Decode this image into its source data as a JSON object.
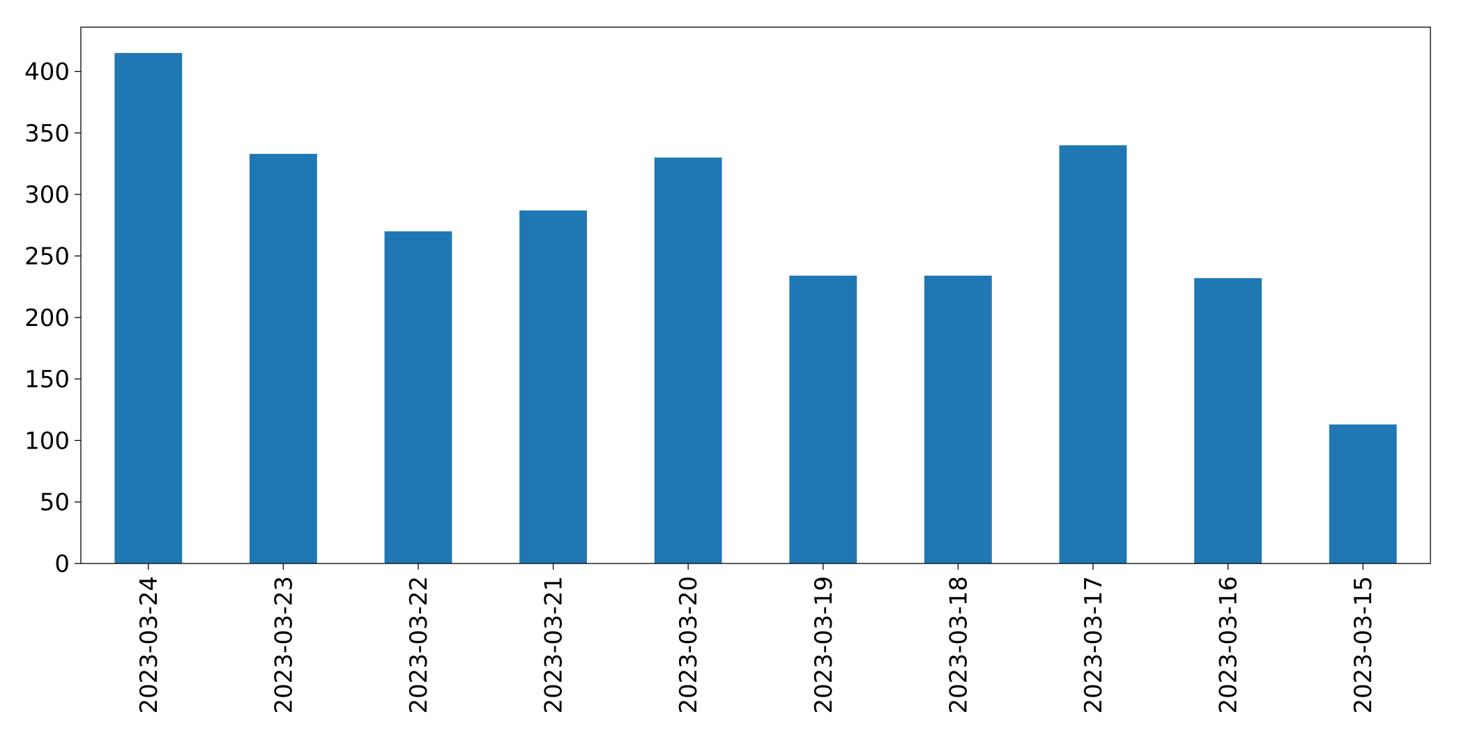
{
  "chart_data": {
    "type": "bar",
    "categories": [
      "2023-03-24",
      "2023-03-23",
      "2023-03-22",
      "2023-03-21",
      "2023-03-20",
      "2023-03-19",
      "2023-03-18",
      "2023-03-17",
      "2023-03-16",
      "2023-03-15"
    ],
    "values": [
      415,
      333,
      270,
      287,
      330,
      234,
      234,
      340,
      232,
      113
    ],
    "color": "#1f77b4",
    "ylim": [
      0,
      436
    ],
    "yticks": [
      0,
      50,
      100,
      150,
      200,
      250,
      300,
      350,
      400
    ],
    "grid": false
  }
}
